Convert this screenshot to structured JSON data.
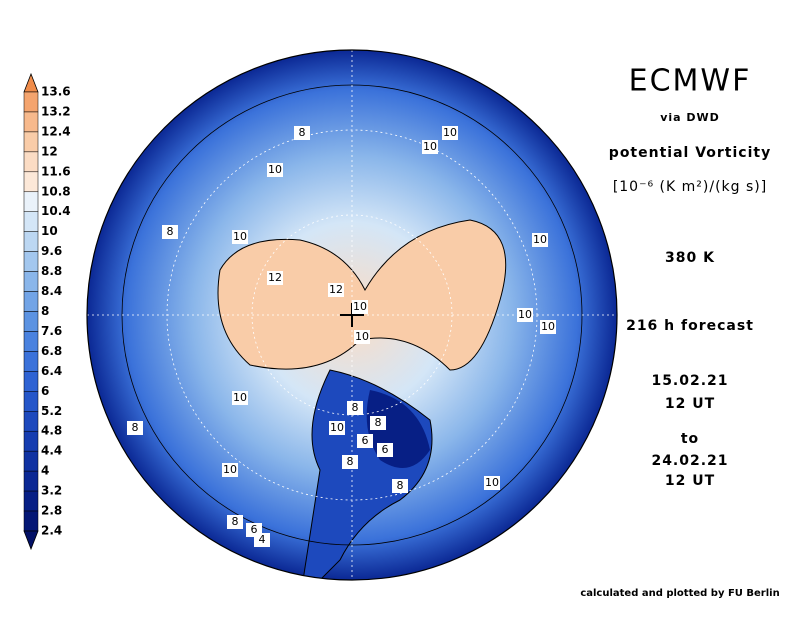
{
  "colorbar": {
    "ticks": [
      13.6,
      13.2,
      12.4,
      12,
      11.6,
      10.8,
      10.4,
      10,
      9.6,
      8.8,
      8.4,
      8,
      7.6,
      6.8,
      6.4,
      6,
      5.2,
      4.8,
      4.4,
      4,
      3.2,
      2.8,
      2.4
    ],
    "colors": [
      "#f08c4a",
      "#f4a46e",
      "#f7b98c",
      "#f9cca8",
      "#fbdcc4",
      "#fce8d8",
      "#eaf2fa",
      "#d4e6f7",
      "#bcd7f2",
      "#a3c7ee",
      "#8ab6ea",
      "#72a4e6",
      "#5c93e2",
      "#4a82df",
      "#3b72da",
      "#2f63d3",
      "#2556c9",
      "#1d49bd",
      "#163db0",
      "#1032a2",
      "#0b2894",
      "#071f85",
      "#041775",
      "#021066"
    ]
  },
  "contour_labels": [
    10,
    8,
    10,
    10,
    8,
    10,
    10,
    12,
    12,
    10,
    10,
    10,
    10,
    10,
    8,
    8,
    10,
    6,
    8,
    6,
    8,
    10,
    8,
    10,
    8,
    6,
    4
  ],
  "header": {
    "title": "ECMWF",
    "source": "via DWD",
    "variable": "potential Vorticity",
    "unit": "[10⁻⁶ (K m²)/(kg s)]",
    "level": "380 K",
    "forecast": "216 h forecast",
    "start_date": "15.02.21",
    "start_time": "12 UT",
    "to": "to",
    "end_date": "24.02.21",
    "end_time": "12 UT"
  },
  "footer": "calculated and plotted by FU Berlin"
}
